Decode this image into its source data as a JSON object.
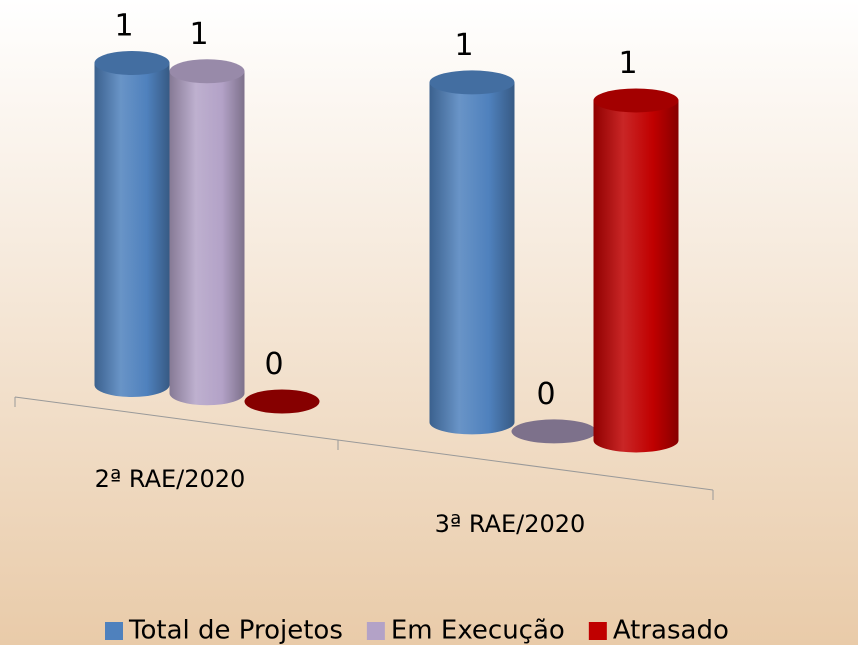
{
  "chart_data": {
    "type": "bar",
    "categories": [
      "2ª RAE/2020",
      "3ª RAE/2020"
    ],
    "series": [
      {
        "name": "Total de Projetos",
        "color": "#4f81bd",
        "values": [
          1,
          1
        ]
      },
      {
        "name": "Em Execução",
        "color": "#b3a2c7",
        "values": [
          1,
          0
        ]
      },
      {
        "name": "Atrasado",
        "color": "#c00000",
        "values": [
          0,
          1
        ]
      }
    ],
    "legend": "bottom"
  }
}
